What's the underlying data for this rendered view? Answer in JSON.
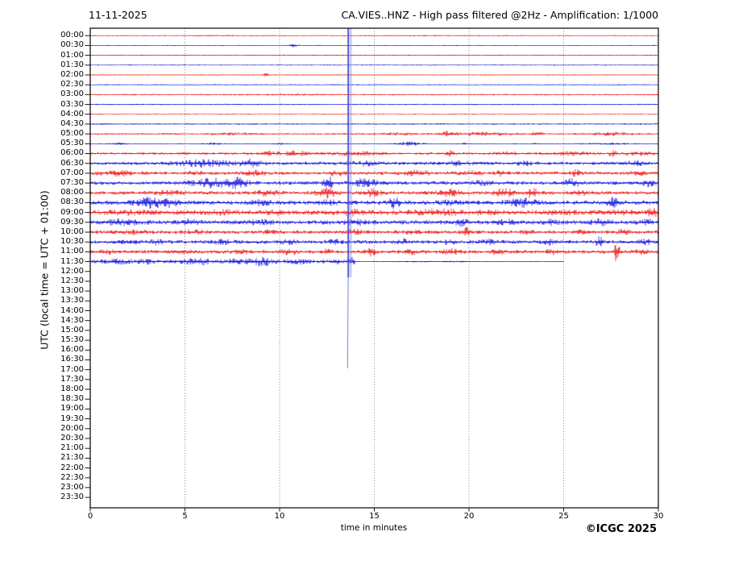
{
  "header": {
    "date": "11-11-2025",
    "title": "CA.VIES..HNZ - High pass filtered @2Hz - Amplification: 1/1000"
  },
  "axes": {
    "y_label": "UTC (local time = UTC + 01:00)",
    "x_label": "time in minutes",
    "x_ticks": [
      "0",
      "5",
      "10",
      "15",
      "20",
      "25",
      "30"
    ],
    "x_tick_minutes": [
      0,
      5,
      10,
      15,
      20,
      25,
      30
    ],
    "grid_minutes": [
      5,
      10,
      15,
      20,
      25
    ],
    "x_range": [
      0,
      30
    ]
  },
  "footer": {
    "copyright": "©ICGC 2025"
  },
  "colors": {
    "trace_red": "#ee0000",
    "trace_blue": "#0000dd",
    "event_halo": "rgba(120,130,235,0.38)",
    "event_core": "#4a4ad0",
    "event_tail": "#8a8ae6",
    "grid": "#666666",
    "frame": "#000000"
  },
  "chart_data": {
    "type": "line",
    "subtype": "helicorder-dayplot",
    "station": "CA.VIES..HNZ",
    "date": "11-11-2025",
    "filter": "High pass filtered @2Hz",
    "amplification": "1/1000",
    "minutes_per_line": 30,
    "time_note": "UTC rows 00:00-23:30; recording stops at ~11:55 UTC (11:30 row ends at minute 25); rows 12:00-23:30 empty",
    "event": {
      "minute": 13.62,
      "row_label": "02:30",
      "color": "blue",
      "halo_rows_span": "00:00 to ~12:00",
      "tail_end_row": "17:00"
    },
    "rows": [
      {
        "label": "00:00",
        "color": "red",
        "base": 0.3,
        "bursts": [
          [
            7,
            2,
            0.12
          ],
          [
            18,
            4,
            0.1
          ]
        ]
      },
      {
        "label": "00:30",
        "color": "blue",
        "base": 0.3,
        "bursts": [
          [
            10.8,
            0.2,
            1.1
          ]
        ]
      },
      {
        "label": "01:00",
        "color": "red",
        "base": 0.35,
        "bursts": []
      },
      {
        "label": "01:30",
        "color": "blue",
        "base": 0.35,
        "bursts": []
      },
      {
        "label": "02:00",
        "color": "red",
        "base": 0.3,
        "bursts": [
          [
            9.3,
            0.12,
            1.3
          ]
        ]
      },
      {
        "label": "02:30",
        "color": "blue",
        "base": 0.35,
        "bursts": []
      },
      {
        "label": "03:00",
        "color": "red",
        "base": 0.45,
        "bursts": [
          [
            10.5,
            1.5,
            0.2
          ]
        ]
      },
      {
        "label": "03:30",
        "color": "blue",
        "base": 0.4,
        "bursts": []
      },
      {
        "label": "04:00",
        "color": "red",
        "base": 0.35,
        "bursts": []
      },
      {
        "label": "04:30",
        "color": "blue",
        "base": 0.5,
        "bursts": []
      },
      {
        "label": "05:00",
        "color": "red",
        "base": 0.55,
        "bursts": [
          [
            7.5,
            1,
            0.5
          ],
          [
            16.2,
            0.8,
            0.8
          ],
          [
            18.9,
            0.3,
            1.5
          ],
          [
            20.5,
            1.5,
            0.9
          ],
          [
            23.6,
            0.3,
            1.2
          ],
          [
            27.5,
            1.2,
            0.8
          ]
        ]
      },
      {
        "label": "05:30",
        "color": "blue",
        "base": 0.3,
        "bursts": [
          [
            1.5,
            0.4,
            0.7
          ],
          [
            6.5,
            0.4,
            0.9
          ],
          [
            10,
            0.3,
            0.7
          ],
          [
            16.9,
            0.6,
            1.3
          ],
          [
            19.8,
            0.15,
            0.8
          ],
          [
            23.5,
            0.15,
            0.6
          ],
          [
            27.5,
            1.5,
            0.4
          ]
        ]
      },
      {
        "label": "06:00",
        "color": "red",
        "base": 0.8,
        "bursts": [
          [
            9.5,
            0.4,
            0.9
          ],
          [
            10.8,
            0.8,
            1.2
          ],
          [
            14,
            1.2,
            1
          ],
          [
            19.1,
            0.25,
            1.6
          ],
          [
            22,
            0.8,
            0.7
          ],
          [
            25.5,
            1,
            0.9
          ],
          [
            27.6,
            0.2,
            1.6
          ],
          [
            29,
            0.8,
            0.8
          ]
        ]
      },
      {
        "label": "06:30",
        "color": "blue",
        "base": 1.1,
        "bursts": [
          [
            6,
            1.5,
            1.6
          ],
          [
            8.5,
            0.5,
            1.8
          ],
          [
            14.5,
            0.8,
            0.9
          ],
          [
            19.5,
            0.5,
            1.1
          ],
          [
            23,
            0.4,
            0.9
          ],
          [
            28.8,
            0.4,
            1.2
          ]
        ]
      },
      {
        "label": "07:00",
        "color": "red",
        "base": 1.1,
        "bursts": [
          [
            1.5,
            0.8,
            1.2
          ],
          [
            5.5,
            0.4,
            0.9
          ],
          [
            8.7,
            0.5,
            1.2
          ],
          [
            13,
            0.5,
            1
          ],
          [
            17.3,
            0.6,
            1.6
          ],
          [
            20,
            0.5,
            1
          ],
          [
            21.7,
            0.3,
            1.3
          ],
          [
            25.7,
            0.3,
            1.7
          ],
          [
            29,
            0.4,
            1
          ]
        ]
      },
      {
        "label": "07:30",
        "color": "blue",
        "base": 1.2,
        "bursts": [
          [
            6.5,
            1.2,
            2.2
          ],
          [
            7.8,
            0.5,
            2
          ],
          [
            12.55,
            0.2,
            5.5
          ],
          [
            14.5,
            0.6,
            2
          ],
          [
            20.5,
            0.5,
            1
          ],
          [
            25.5,
            0.4,
            2
          ],
          [
            29.5,
            0.3,
            1.5
          ]
        ]
      },
      {
        "label": "08:00",
        "color": "red",
        "base": 1.2,
        "bursts": [
          [
            4,
            0.6,
            1.2
          ],
          [
            9.3,
            0.5,
            1.5
          ],
          [
            12.5,
            0.5,
            2.5
          ],
          [
            14.9,
            0.4,
            2
          ],
          [
            19,
            0.6,
            1.5
          ],
          [
            21.8,
            0.5,
            2.5
          ],
          [
            23.3,
            0.25,
            3.5
          ],
          [
            26,
            0.4,
            1
          ]
        ]
      },
      {
        "label": "08:30",
        "color": "blue",
        "base": 1.4,
        "bursts": [
          [
            3.2,
            0.8,
            2.5
          ],
          [
            4.2,
            0.4,
            2
          ],
          [
            9,
            0.5,
            1.2
          ],
          [
            12.5,
            0.4,
            1.5
          ],
          [
            16.1,
            0.3,
            3
          ],
          [
            19,
            0.5,
            1
          ],
          [
            22.7,
            0.8,
            2
          ],
          [
            27.6,
            0.3,
            2.5
          ]
        ]
      },
      {
        "label": "09:00",
        "color": "red",
        "base": 1.6,
        "bursts": [
          [
            2,
            1,
            0.6
          ],
          [
            7,
            0.8,
            0.6
          ],
          [
            10,
            0.5,
            1
          ],
          [
            13.8,
            0.4,
            1.4
          ],
          [
            18.5,
            1,
            1.3
          ],
          [
            21,
            0.4,
            1.2
          ],
          [
            24.8,
            0.6,
            0.8
          ],
          [
            28,
            0.6,
            0.8
          ],
          [
            29.7,
            0.25,
            1.8
          ]
        ]
      },
      {
        "label": "09:30",
        "color": "blue",
        "base": 1.4,
        "bursts": [
          [
            1.8,
            1,
            1.1
          ],
          [
            5.3,
            0.4,
            1.2
          ],
          [
            9,
            0.6,
            1
          ],
          [
            14,
            0.5,
            1.2
          ],
          [
            19.6,
            0.25,
            2.6
          ],
          [
            22,
            0.5,
            0.9
          ],
          [
            24.3,
            0.4,
            1.2
          ],
          [
            27,
            0.5,
            1.2
          ],
          [
            29.4,
            0.25,
            1.6
          ]
        ]
      },
      {
        "label": "10:00",
        "color": "red",
        "base": 1.2,
        "bursts": [
          [
            2,
            0.8,
            0.7
          ],
          [
            5.5,
            0.5,
            0.9
          ],
          [
            9.5,
            0.4,
            0.7
          ],
          [
            14,
            0.5,
            1
          ],
          [
            17,
            0.5,
            0.8
          ],
          [
            19.9,
            0.25,
            2.2
          ],
          [
            23.2,
            0.4,
            1
          ],
          [
            26,
            0.5,
            0.8
          ],
          [
            28.2,
            0.3,
            1.2
          ]
        ]
      },
      {
        "label": "10:30",
        "color": "blue",
        "base": 1.2,
        "bursts": [
          [
            2,
            0.6,
            1
          ],
          [
            3.5,
            0.3,
            1.3
          ],
          [
            7,
            0.5,
            1
          ],
          [
            10.5,
            0.4,
            0.8
          ],
          [
            13,
            0.5,
            1
          ],
          [
            16.5,
            0.3,
            1.3
          ],
          [
            19,
            0.4,
            0.9
          ],
          [
            21,
            0.4,
            1
          ],
          [
            24.2,
            0.4,
            1.3
          ],
          [
            26.9,
            0.2,
            2.4
          ],
          [
            29.3,
            0.3,
            1.1
          ]
        ]
      },
      {
        "label": "11:00",
        "color": "red",
        "base": 1.2,
        "bursts": [
          [
            1,
            0.5,
            0.9
          ],
          [
            5,
            0.5,
            0.7
          ],
          [
            8,
            0.4,
            0.8
          ],
          [
            10.5,
            0.4,
            1.3
          ],
          [
            12.5,
            0.3,
            1
          ],
          [
            14.8,
            0.25,
            1.8
          ],
          [
            17,
            0.4,
            0.9
          ],
          [
            19,
            0.5,
            1.1
          ],
          [
            21.5,
            0.3,
            1.4
          ],
          [
            24.5,
            0.4,
            1.1
          ],
          [
            27.8,
            0.15,
            6
          ],
          [
            29,
            0.3,
            1
          ]
        ]
      },
      {
        "label": "11:30",
        "color": "blue",
        "base": 1.1,
        "end": 25,
        "qa": 14,
        "bursts": [
          [
            1.5,
            0.8,
            0.9
          ],
          [
            3,
            0.5,
            0.8
          ],
          [
            5.6,
            0.7,
            1.7
          ],
          [
            7.5,
            0.5,
            1
          ],
          [
            9,
            0.8,
            2
          ],
          [
            11,
            0.5,
            1
          ],
          [
            13,
            0.4,
            1.3
          ],
          [
            13.8,
            0.15,
            1.8
          ],
          [
            17.5,
            1.5,
            0.25
          ],
          [
            19.5,
            0.8,
            0.3
          ]
        ]
      },
      {
        "label": "12:00",
        "color": "red",
        "base": 0,
        "end": 0,
        "bursts": []
      },
      {
        "label": "12:30",
        "color": "blue",
        "base": 0,
        "end": 0,
        "bursts": []
      },
      {
        "label": "13:00",
        "color": "red",
        "base": 0,
        "end": 0,
        "bursts": []
      },
      {
        "label": "13:30",
        "color": "blue",
        "base": 0,
        "end": 0,
        "bursts": []
      },
      {
        "label": "14:00",
        "color": "red",
        "base": 0,
        "end": 0,
        "bursts": []
      },
      {
        "label": "14:30",
        "color": "blue",
        "base": 0,
        "end": 0,
        "bursts": []
      },
      {
        "label": "15:00",
        "color": "red",
        "base": 0,
        "end": 0,
        "bursts": []
      },
      {
        "label": "15:30",
        "color": "blue",
        "base": 0,
        "end": 0,
        "bursts": []
      },
      {
        "label": "16:00",
        "color": "red",
        "base": 0,
        "end": 0,
        "bursts": []
      },
      {
        "label": "16:30",
        "color": "blue",
        "base": 0,
        "end": 0,
        "bursts": []
      },
      {
        "label": "17:00",
        "color": "red",
        "base": 0,
        "end": 0,
        "bursts": []
      },
      {
        "label": "17:30",
        "color": "blue",
        "base": 0,
        "end": 0,
        "bursts": []
      },
      {
        "label": "18:00",
        "color": "red",
        "base": 0,
        "end": 0,
        "bursts": []
      },
      {
        "label": "18:30",
        "color": "blue",
        "base": 0,
        "end": 0,
        "bursts": []
      },
      {
        "label": "19:00",
        "color": "red",
        "base": 0,
        "end": 0,
        "bursts": []
      },
      {
        "label": "19:30",
        "color": "blue",
        "base": 0,
        "end": 0,
        "bursts": []
      },
      {
        "label": "20:00",
        "color": "red",
        "base": 0,
        "end": 0,
        "bursts": []
      },
      {
        "label": "20:30",
        "color": "blue",
        "base": 0,
        "end": 0,
        "bursts": []
      },
      {
        "label": "21:00",
        "color": "red",
        "base": 0,
        "end": 0,
        "bursts": []
      },
      {
        "label": "21:30",
        "color": "blue",
        "base": 0,
        "end": 0,
        "bursts": []
      },
      {
        "label": "22:00",
        "color": "red",
        "base": 0,
        "end": 0,
        "bursts": []
      },
      {
        "label": "22:30",
        "color": "blue",
        "base": 0,
        "end": 0,
        "bursts": []
      },
      {
        "label": "23:00",
        "color": "red",
        "base": 0,
        "end": 0,
        "bursts": []
      },
      {
        "label": "23:30",
        "color": "blue",
        "base": 0,
        "end": 0,
        "bursts": []
      }
    ]
  }
}
